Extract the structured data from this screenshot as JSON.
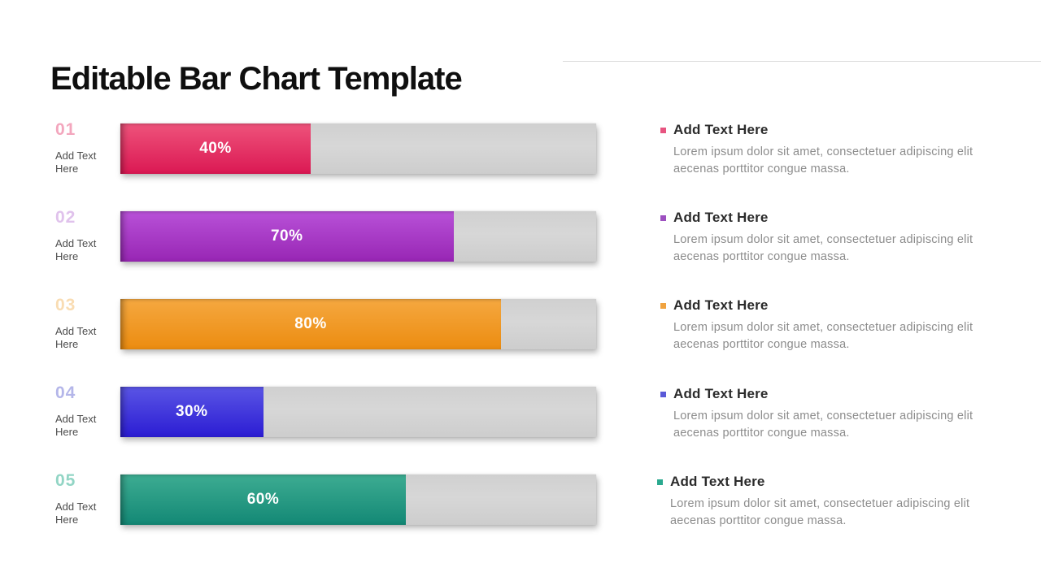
{
  "title": "Editable Bar Chart Template",
  "chart_data": {
    "type": "bar",
    "orientation": "horizontal",
    "title": "Editable Bar Chart Template",
    "categories": [
      "01",
      "02",
      "03",
      "04",
      "05"
    ],
    "category_labels": [
      "Add Text Here",
      "Add Text Here",
      "Add Text Here",
      "Add Text Here",
      "Add Text Here"
    ],
    "values": [
      40,
      70,
      80,
      30,
      60
    ],
    "value_labels": [
      "40%",
      "70%",
      "80%",
      "30%",
      "60%"
    ],
    "xlim": [
      0,
      100
    ],
    "grid": false,
    "legend": false,
    "bar_colors": [
      "#e3224f",
      "#a835c7",
      "#f09b28",
      "#3c35da",
      "#1f9b81"
    ],
    "track_color": "#d3d3d3"
  },
  "bars": [
    {
      "number": "01",
      "label": "Add Text Here",
      "value": 40,
      "percent_label": "40%",
      "color_top": "#ee537b",
      "color_bottom": "#db1853",
      "number_color": "#f3a6bd"
    },
    {
      "number": "02",
      "label": "Add Text Here",
      "value": 70,
      "percent_label": "70%",
      "color_top": "#b851d8",
      "color_bottom": "#9826b4",
      "number_color": "#e0c2ec"
    },
    {
      "number": "03",
      "label": "Add Text Here",
      "value": 80,
      "percent_label": "80%",
      "color_top": "#f5a840",
      "color_bottom": "#ec8c10",
      "number_color": "#f9dcb2"
    },
    {
      "number": "04",
      "label": "Add Text Here",
      "value": 30,
      "percent_label": "30%",
      "color_top": "#5a55e5",
      "color_bottom": "#2b1cd3",
      "number_color": "#b4b6e9"
    },
    {
      "number": "05",
      "label": "Add Text Here",
      "value": 60,
      "percent_label": "60%",
      "color_top": "#3dac92",
      "color_bottom": "#138875",
      "number_color": "#92d5c5"
    }
  ],
  "notes": [
    {
      "heading": "Add Text Here",
      "body": "Lorem ipsum dolor sit amet, consectetuer adipiscing elit aecenas porttitor congue massa.",
      "bullet_color": "#e75480"
    },
    {
      "heading": "Add Text Here",
      "body": "Lorem ipsum dolor sit amet, consectetuer adipiscing elit aecenas porttitor congue massa.",
      "bullet_color": "#9d50c0"
    },
    {
      "heading": "Add Text Here",
      "body": "Lorem ipsum dolor sit amet, consectetuer adipiscing elit aecenas porttitor congue massa.",
      "bullet_color": "#f0a340"
    },
    {
      "heading": "Add Text Here",
      "body": "Lorem ipsum dolor sit amet, consectetuer adipiscing elit aecenas porttitor congue massa.",
      "bullet_color": "#5a5ad8"
    },
    {
      "heading": "Add Text Here",
      "body": "Lorem ipsum dolor sit amet, consectetuer adipiscing elit aecenas porttitor congue massa.",
      "bullet_color": "#2aa98f"
    }
  ],
  "divider_color": "#dcdcdc"
}
